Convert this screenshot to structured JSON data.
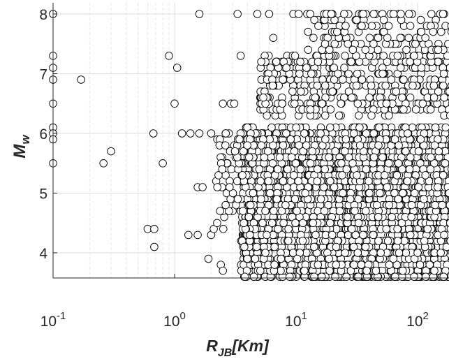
{
  "chart_data": {
    "type": "scatter",
    "x_scale": "log",
    "xlim": [
      0.1,
      250
    ],
    "ylim": [
      3.4,
      8.1
    ],
    "x_ticks": [
      {
        "base": "10",
        "exp": "-1",
        "value": 0.1
      },
      {
        "base": "10",
        "exp": "0",
        "value": 1
      },
      {
        "base": "10",
        "exp": "1",
        "value": 10
      },
      {
        "base": "10",
        "exp": "2",
        "value": 100
      }
    ],
    "y_ticks": [
      "4",
      "5",
      "6",
      "7",
      "8"
    ],
    "xlabel": {
      "main": "R",
      "sub": "JB",
      "rest": "[Km]"
    },
    "ylabel": {
      "main": "M",
      "sub": "w"
    },
    "grid": true,
    "marker": {
      "shape": "circle",
      "fill": "#ffffff",
      "edge": "#000000"
    },
    "points": [
      [
        0.1,
        8.0
      ],
      [
        0.1,
        7.3
      ],
      [
        0.1,
        7.1
      ],
      [
        0.1,
        6.9
      ],
      [
        0.1,
        6.5
      ],
      [
        0.1,
        6.1
      ],
      [
        0.1,
        6.0
      ],
      [
        0.1,
        5.9
      ],
      [
        0.1,
        5.5
      ],
      [
        0.17,
        6.9
      ],
      [
        0.26,
        5.5
      ],
      [
        0.3,
        5.7
      ],
      [
        0.6,
        4.4
      ],
      [
        0.68,
        4.4
      ],
      [
        0.68,
        4.1
      ],
      [
        0.67,
        6.0
      ],
      [
        0.8,
        5.5
      ],
      [
        0.9,
        7.3
      ],
      [
        1.0,
        6.5
      ],
      [
        1.05,
        7.1
      ],
      [
        1.15,
        6.0
      ],
      [
        1.35,
        6.0
      ],
      [
        1.3,
        4.3
      ],
      [
        1.6,
        8.0
      ],
      [
        1.6,
        6.0
      ],
      [
        1.55,
        4.3
      ],
      [
        1.55,
        5.1
      ],
      [
        1.7,
        5.1
      ],
      [
        1.9,
        3.9
      ],
      [
        2.0,
        4.3
      ],
      [
        2.0,
        6.0
      ],
      [
        2.1,
        4.4
      ],
      [
        2.2,
        5.2
      ],
      [
        2.4,
        3.8
      ],
      [
        2.5,
        3.7
      ],
      [
        2.5,
        6.5
      ],
      [
        2.9,
        6.5
      ],
      [
        3.1,
        6.5
      ],
      [
        3.3,
        8.0
      ],
      [
        3.5,
        7.3
      ],
      [
        4.8,
        8.0
      ],
      [
        6.0,
        8.0
      ],
      [
        6.5,
        7.6
      ],
      [
        9.5,
        8.0
      ],
      [
        10.5,
        8.0
      ],
      [
        13,
        8.0
      ],
      [
        17,
        7.6
      ],
      [
        25,
        7.6
      ],
      [
        28,
        7.6
      ],
      [
        33,
        8.0
      ],
      [
        45,
        8.0
      ],
      [
        60,
        8.0
      ],
      [
        90,
        8.0
      ],
      [
        130,
        8.0
      ],
      [
        200,
        8.0
      ]
    ]
  }
}
